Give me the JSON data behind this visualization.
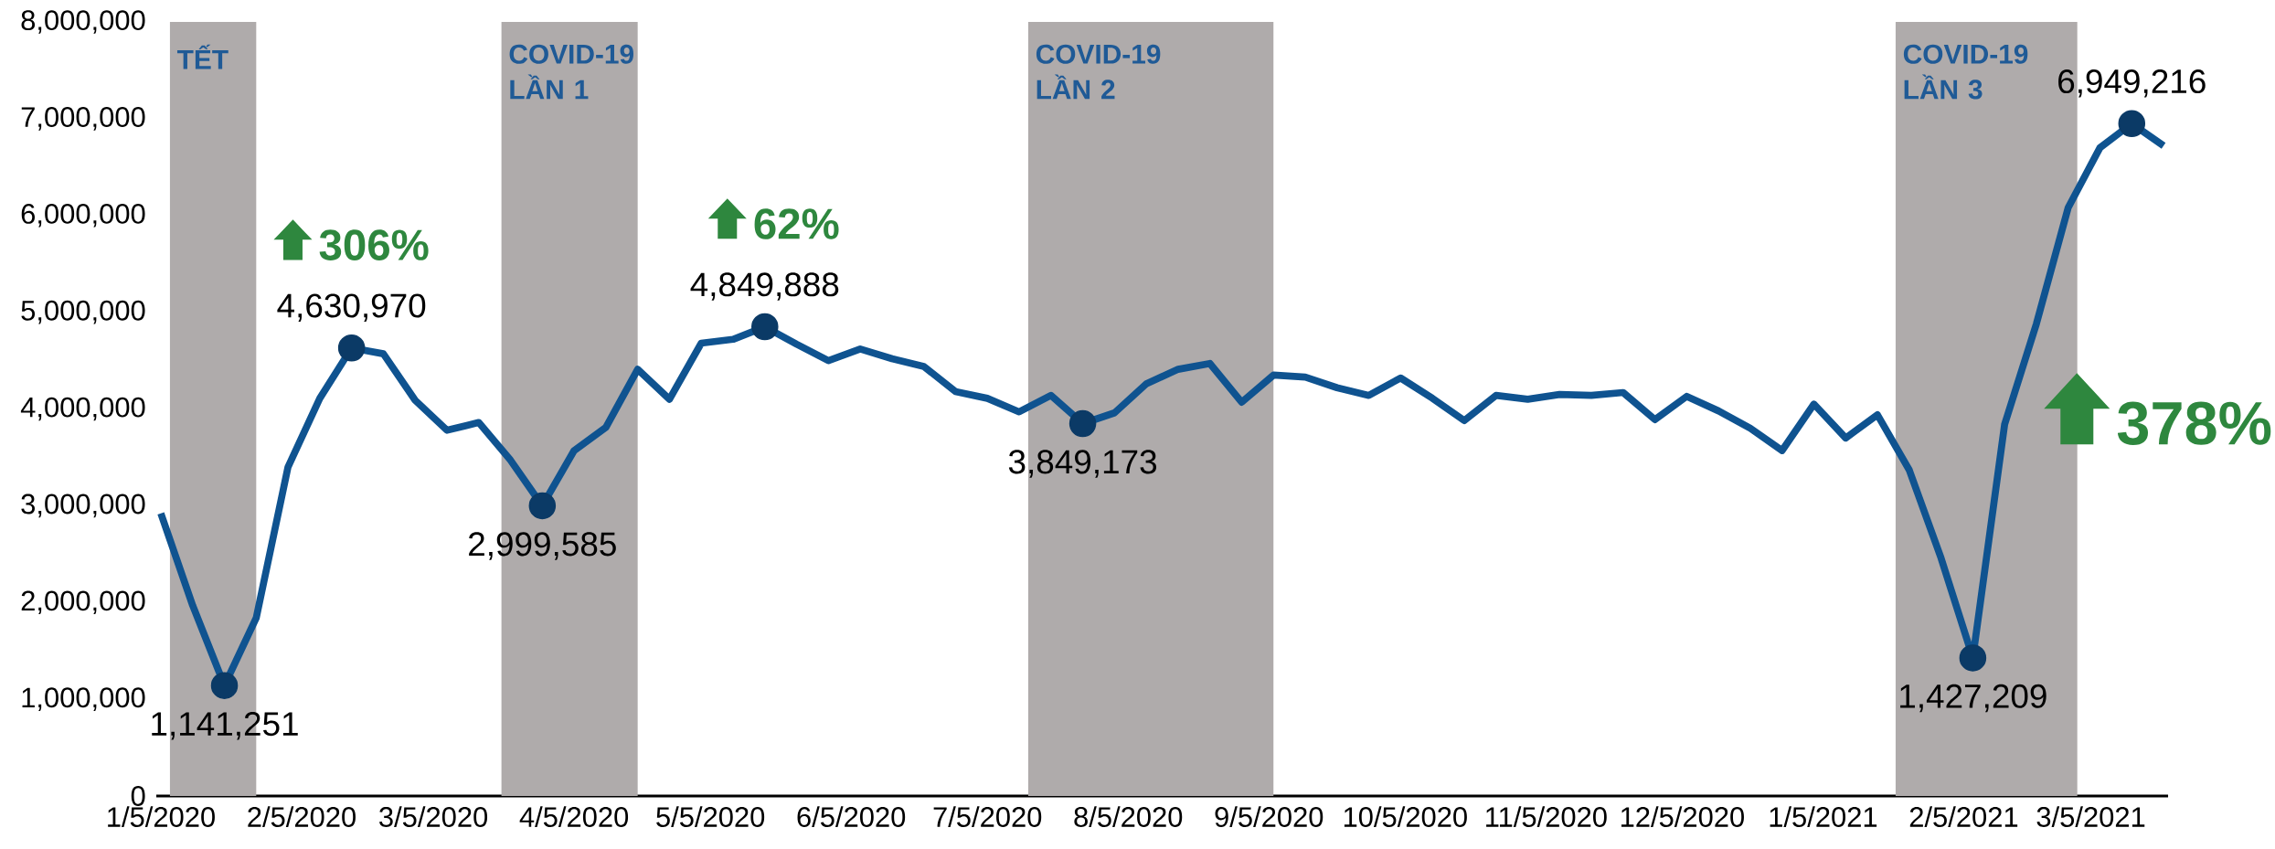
{
  "chart_data": {
    "type": "line",
    "x": [
      "2020-01-05",
      "2020-01-12",
      "2020-01-19",
      "2020-01-26",
      "2020-02-02",
      "2020-02-09",
      "2020-02-16",
      "2020-02-23",
      "2020-03-01",
      "2020-03-08",
      "2020-03-15",
      "2020-03-22",
      "2020-03-29",
      "2020-04-05",
      "2020-04-12",
      "2020-04-19",
      "2020-04-26",
      "2020-05-03",
      "2020-05-10",
      "2020-05-17",
      "2020-05-24",
      "2020-05-31",
      "2020-06-07",
      "2020-06-14",
      "2020-06-21",
      "2020-06-28",
      "2020-07-05",
      "2020-07-12",
      "2020-07-19",
      "2020-07-26",
      "2020-08-02",
      "2020-08-09",
      "2020-08-16",
      "2020-08-23",
      "2020-08-30",
      "2020-09-06",
      "2020-09-13",
      "2020-09-20",
      "2020-09-27",
      "2020-10-04",
      "2020-10-11",
      "2020-10-18",
      "2020-10-25",
      "2020-11-01",
      "2020-11-08",
      "2020-11-15",
      "2020-11-22",
      "2020-11-29",
      "2020-12-06",
      "2020-12-13",
      "2020-12-20",
      "2020-12-27",
      "2021-01-03",
      "2021-01-10",
      "2021-01-17",
      "2021-01-24",
      "2021-01-31",
      "2021-02-07",
      "2021-02-14",
      "2021-02-21",
      "2021-02-28",
      "2021-03-07",
      "2021-03-14",
      "2021-03-21"
    ],
    "series": [
      {
        "color": "#0f5390",
        "values": [
          2920000,
          1970000,
          1141251,
          1840000,
          3400000,
          4110000,
          4630970,
          4570000,
          4090000,
          3780000,
          3860000,
          3470000,
          2999585,
          3570000,
          3810000,
          4410000,
          4100000,
          4680000,
          4720000,
          4849888,
          4670000,
          4500000,
          4620000,
          4520000,
          4440000,
          4180000,
          4110000,
          3970000,
          4140000,
          3849173,
          3960000,
          4260000,
          4410000,
          4470000,
          4070000,
          4350000,
          4330000,
          4220000,
          4140000,
          4320000,
          4110000,
          3880000,
          4140000,
          4100000,
          4150000,
          4140000,
          4170000,
          3890000,
          4130000,
          3980000,
          3800000,
          3570000,
          4050000,
          3700000,
          3940000,
          3370000,
          2460000,
          1427209,
          3840000,
          4880000,
          6080000,
          6700000,
          6949216,
          6720000
        ],
        "value_labels": [
          null,
          null,
          "1,141,251",
          null,
          null,
          null,
          "4,630,970",
          null,
          null,
          null,
          null,
          null,
          "2,999,585",
          null,
          null,
          null,
          null,
          null,
          null,
          "4,849,888",
          null,
          null,
          null,
          null,
          null,
          null,
          null,
          null,
          null,
          "3,849,173",
          null,
          null,
          null,
          null,
          null,
          null,
          null,
          null,
          null,
          null,
          null,
          null,
          null,
          null,
          null,
          null,
          null,
          null,
          null,
          null,
          null,
          null,
          null,
          null,
          null,
          null,
          null,
          "1,427,209",
          null,
          null,
          null,
          null,
          "6,949,216",
          null
        ]
      }
    ],
    "line_style": "solid",
    "xlim": [
      "2020-01-04",
      "2021-03-22"
    ],
    "xticks": [
      {
        "value": "2020-01-05",
        "label": "1/5/2020"
      },
      {
        "value": "2020-02-05",
        "label": "2/5/2020"
      },
      {
        "value": "2020-03-05",
        "label": "3/5/2020"
      },
      {
        "value": "2020-04-05",
        "label": "4/5/2020"
      },
      {
        "value": "2020-05-05",
        "label": "5/5/2020"
      },
      {
        "value": "2020-06-05",
        "label": "6/5/2020"
      },
      {
        "value": "2020-07-05",
        "label": "7/5/2020"
      },
      {
        "value": "2020-08-05",
        "label": "8/5/2020"
      },
      {
        "value": "2020-09-05",
        "label": "9/5/2020"
      },
      {
        "value": "2020-10-05",
        "label": "10/5/2020"
      },
      {
        "value": "2020-11-05",
        "label": "11/5/2020"
      },
      {
        "value": "2020-12-05",
        "label": "12/5/2020"
      },
      {
        "value": "2021-01-05",
        "label": "1/5/2021"
      },
      {
        "value": "2021-02-05",
        "label": "2/5/2021"
      },
      {
        "value": "2021-03-05",
        "label": "3/5/2021"
      }
    ],
    "ylim": [
      0,
      8000000
    ],
    "yticks": [
      0,
      {
        "value": 1000000,
        "label": "1,000,000"
      },
      {
        "value": 2000000,
        "label": "2,000,000"
      },
      {
        "value": 3000000,
        "label": "3,000,000"
      },
      {
        "value": 4000000,
        "label": "4,000,000"
      },
      {
        "value": 5000000,
        "label": "5,000,000"
      },
      {
        "value": 6000000,
        "label": "6,000,000"
      },
      {
        "value": 7000000,
        "label": "7,000,000"
      },
      {
        "value": 8000000,
        "label": "8,000,000"
      }
    ],
    "bands": [
      {
        "axis": "x",
        "from": "2020-01-07",
        "to": "2020-01-26",
        "label": "TẾT",
        "color": "#afabab"
      },
      {
        "axis": "x",
        "from": "2020-03-20",
        "to": "2020-04-19",
        "label": "COVID-19 LẦN 1",
        "color": "#afabab"
      },
      {
        "axis": "x",
        "from": "2020-07-14",
        "to": "2020-09-06",
        "label": "COVID-19 LẦN 2",
        "color": "#afabab"
      },
      {
        "axis": "x",
        "from": "2021-01-21",
        "to": "2021-03-02",
        "label": "COVID-19 LẦN 3",
        "color": "#afabab"
      }
    ],
    "annotations": [
      {
        "text": "306%",
        "x": "2020-02-16",
        "y": 4630970
      },
      {
        "text": "62%",
        "x": "2020-05-17",
        "y": 4849888
      },
      "378%"
    ]
  }
}
